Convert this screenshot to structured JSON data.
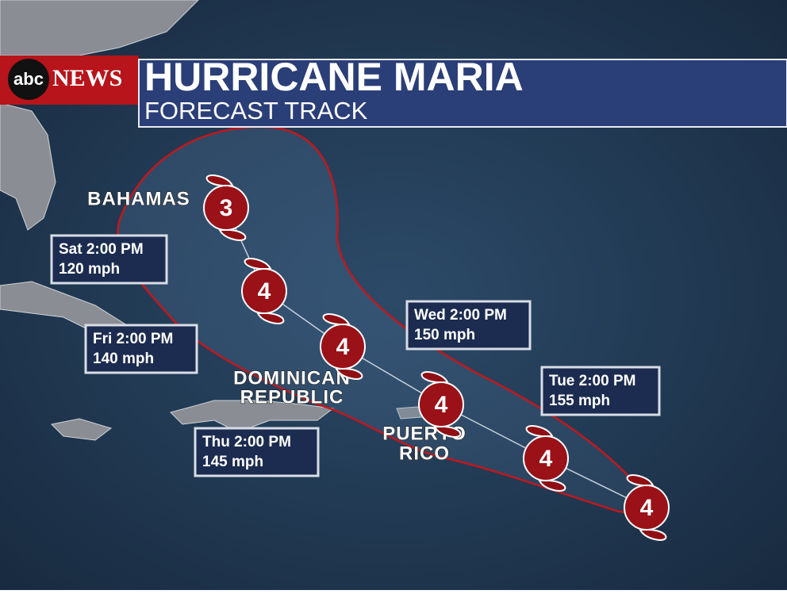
{
  "header": {
    "logo": {
      "abc": "abc",
      "news": "NEWS"
    },
    "title": "HURRICANE MARIA",
    "subtitle": "FORECAST TRACK"
  },
  "places": [
    {
      "lines": [
        "BAHAMAS"
      ]
    },
    {
      "lines": [
        "DOMINICAN",
        "REPUBLIC"
      ]
    },
    {
      "lines": [
        "PUERTO",
        "RICO"
      ]
    }
  ],
  "forecasts": [
    {
      "time": "Sat 2:00 PM",
      "wind": "120 mph"
    },
    {
      "time": "Fri 2:00 PM",
      "wind": "140 mph"
    },
    {
      "time": "Thu 2:00 PM",
      "wind": "145 mph"
    },
    {
      "time": "Wed 2:00 PM",
      "wind": "150 mph"
    },
    {
      "time": "Tue 2:00 PM",
      "wind": "155 mph"
    }
  ],
  "storms": [
    {
      "category": 3
    },
    {
      "category": 4
    },
    {
      "category": 4
    },
    {
      "category": 4
    },
    {
      "category": 4
    },
    {
      "category": 4
    }
  ]
}
